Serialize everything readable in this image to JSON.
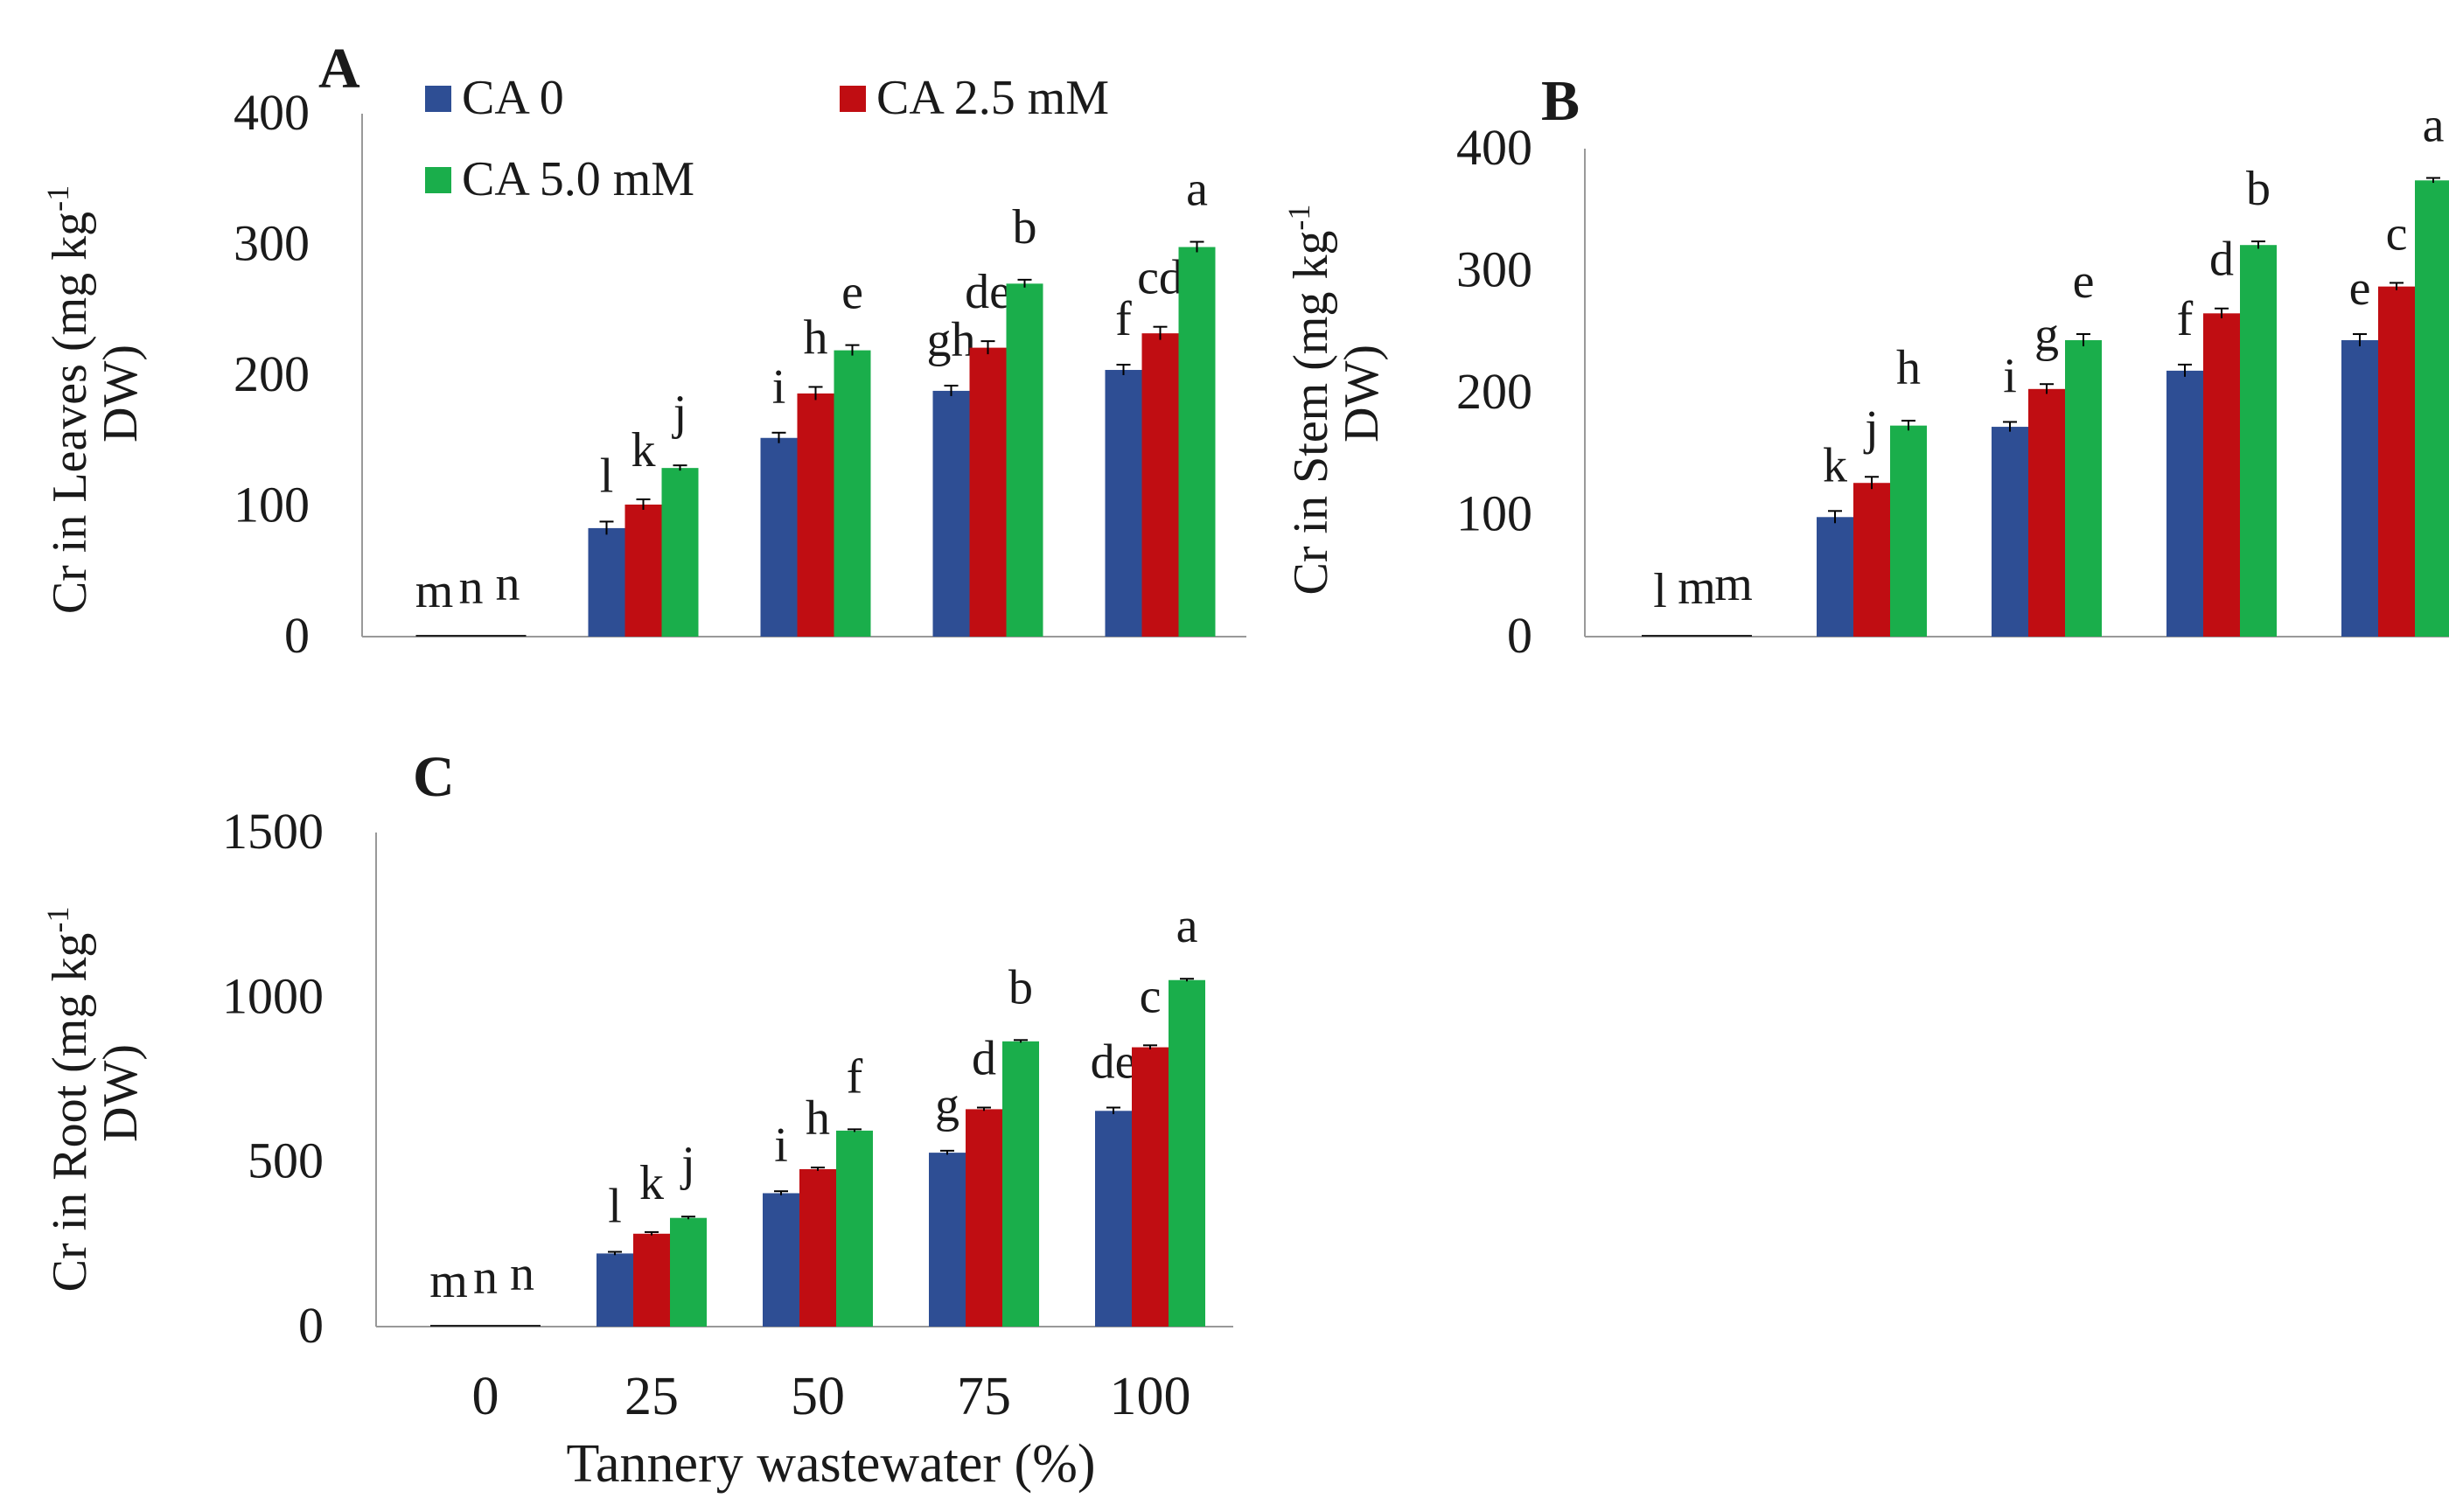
{
  "colors": {
    "ca0": "#2e4e94",
    "ca25": "#c00d12",
    "ca50": "#1aae4b",
    "axis": "#999999",
    "text": "#1a1a1a",
    "error": "#000000"
  },
  "x_axis": {
    "label": "Tannery wastewater (%)",
    "ticks": [
      "0",
      "25",
      "50",
      "75",
      "100"
    ]
  },
  "legend": [
    {
      "label": "CA 0",
      "color_key": "ca0"
    },
    {
      "label": "CA 2.5 mM",
      "color_key": "ca25"
    },
    {
      "label": "CA 5.0 mM",
      "color_key": "ca50"
    }
  ],
  "chart_data": [
    {
      "type": "bar",
      "panel": "A",
      "categories": [
        "0",
        "25",
        "50",
        "75",
        "100"
      ],
      "ylabel_lines": [
        "Cr in Leaves (mg kg",
        "DW)"
      ],
      "ylabel_superscript": "-1",
      "ylim": [
        0,
        400
      ],
      "yticks": [
        0,
        100,
        200,
        300,
        400
      ],
      "series": [
        {
          "name": "CA 0",
          "values": [
            0,
            83,
            152,
            188,
            204
          ],
          "errors": [
            0,
            5,
            4,
            4,
            4
          ],
          "letters": [
            "m",
            "l",
            "i",
            "gh",
            "f"
          ]
        },
        {
          "name": "CA 2.5 mM",
          "values": [
            0,
            101,
            186,
            221,
            232
          ],
          "errors": [
            0,
            4,
            5,
            5,
            5
          ],
          "letters": [
            "n",
            "k",
            "h",
            "de",
            "cd"
          ]
        },
        {
          "name": "CA 5.0 mM",
          "values": [
            0,
            129,
            219,
            270,
            298
          ],
          "errors": [
            0,
            2,
            4,
            3,
            4
          ],
          "letters": [
            "n",
            "j",
            "e",
            "b",
            "a"
          ]
        }
      ]
    },
    {
      "type": "bar",
      "panel": "B",
      "categories": [
        "0",
        "25",
        "50",
        "75",
        "100"
      ],
      "ylabel_lines": [
        "Cr in Stem (mg kg",
        "DW)"
      ],
      "ylabel_superscript": "-1",
      "ylim": [
        0,
        400
      ],
      "yticks": [
        0,
        100,
        200,
        300,
        400
      ],
      "series": [
        {
          "name": "CA 0",
          "values": [
            0,
            98,
            172,
            218,
            243
          ],
          "errors": [
            0,
            5,
            4,
            5,
            5
          ],
          "letters": [
            "l",
            "k",
            "i",
            "f",
            "e"
          ]
        },
        {
          "name": "CA 2.5 mM",
          "values": [
            0,
            126,
            203,
            265,
            287
          ],
          "errors": [
            0,
            5,
            4,
            4,
            3
          ],
          "letters": [
            "m",
            "j",
            "g",
            "d",
            "c"
          ]
        },
        {
          "name": "CA 5.0 mM",
          "values": [
            0,
            173,
            243,
            321,
            374
          ],
          "errors": [
            0,
            4,
            5,
            3,
            2
          ],
          "letters": [
            "m",
            "h",
            "e",
            "b",
            "a"
          ]
        }
      ]
    },
    {
      "type": "bar",
      "panel": "C",
      "categories": [
        "0",
        "25",
        "50",
        "75",
        "100"
      ],
      "ylabel_lines": [
        "Cr in Root (mg kg",
        "DW)"
      ],
      "ylabel_superscript": "-1",
      "ylim": [
        0,
        1500
      ],
      "yticks": [
        0,
        500,
        1000,
        1500
      ],
      "series": [
        {
          "name": "CA 0",
          "values": [
            0,
            222,
            405,
            528,
            655
          ],
          "errors": [
            0,
            5,
            6,
            6,
            10
          ],
          "letters": [
            "m",
            "l",
            "i",
            "g",
            "de"
          ]
        },
        {
          "name": "CA 2.5 mM",
          "values": [
            0,
            282,
            478,
            660,
            848
          ],
          "errors": [
            0,
            5,
            5,
            5,
            6
          ],
          "letters": [
            "n",
            "k",
            "h",
            "d",
            "c"
          ]
        },
        {
          "name": "CA 5.0 mM",
          "values": [
            0,
            330,
            595,
            866,
            1052
          ],
          "errors": [
            0,
            4,
            4,
            4,
            4
          ],
          "letters": [
            "n",
            "j",
            "f",
            "b",
            "a"
          ]
        }
      ]
    }
  ]
}
